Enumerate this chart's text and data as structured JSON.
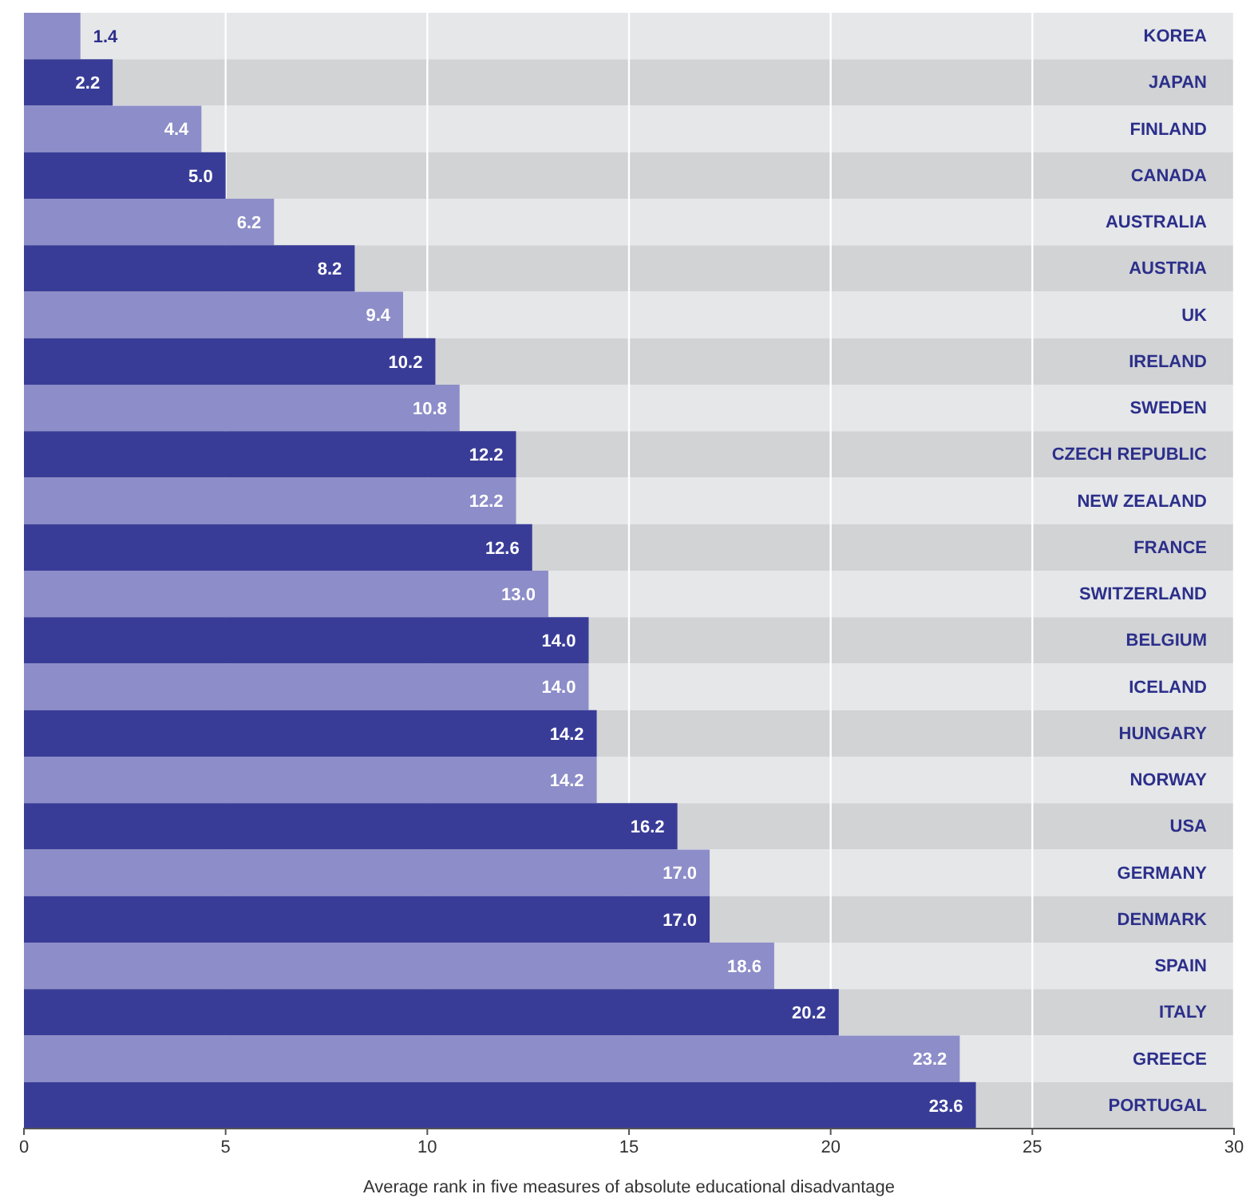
{
  "chart_data": {
    "type": "bar",
    "orientation": "horizontal",
    "xlabel": "Average rank in five measures of absolute educational disadvantage",
    "categories": [
      "KOREA",
      "JAPAN",
      "FINLAND",
      "CANADA",
      "AUSTRALIA",
      "AUSTRIA",
      "UK",
      "IRELAND",
      "SWEDEN",
      "CZECH REPUBLIC",
      "NEW ZEALAND",
      "FRANCE",
      "SWITZERLAND",
      "BELGIUM",
      "ICELAND",
      "HUNGARY",
      "NORWAY",
      "USA",
      "GERMANY",
      "DENMARK",
      "SPAIN",
      "ITALY",
      "GREECE",
      "PORTUGAL"
    ],
    "values": [
      1.4,
      2.2,
      4.4,
      5.0,
      6.2,
      8.2,
      9.4,
      10.2,
      10.8,
      12.2,
      12.2,
      12.6,
      13.0,
      14.0,
      14.0,
      14.2,
      14.2,
      16.2,
      17.0,
      17.0,
      18.6,
      20.2,
      23.2,
      23.6
    ],
    "value_labels": [
      "1.4",
      "2.2",
      "4.4",
      "5.0",
      "6.2",
      "8.2",
      "9.4",
      "10.2",
      "10.8",
      "12.2",
      "12.2",
      "12.6",
      "13.0",
      "14.0",
      "14.0",
      "14.2",
      "14.2",
      "16.2",
      "17.0",
      "17.0",
      "18.6",
      "20.2",
      "23.2",
      "23.6"
    ],
    "colors": [
      "#8d8dc9",
      "#393c97",
      "#8d8dc9",
      "#393c97",
      "#8d8dc9",
      "#393c97",
      "#8d8dc9",
      "#393c97",
      "#8d8dc9",
      "#393c97",
      "#8d8dc9",
      "#393c97",
      "#8d8dc9",
      "#393c97",
      "#8d8dc9",
      "#393c97",
      "#8d8dc9",
      "#393c97",
      "#8d8dc9",
      "#393c97",
      "#8d8dc9",
      "#393c97",
      "#8d8dc9",
      "#393c97"
    ],
    "xlim": [
      0,
      30
    ],
    "xticks": [
      0,
      5,
      10,
      15,
      20,
      25,
      30
    ],
    "grid": "x"
  }
}
